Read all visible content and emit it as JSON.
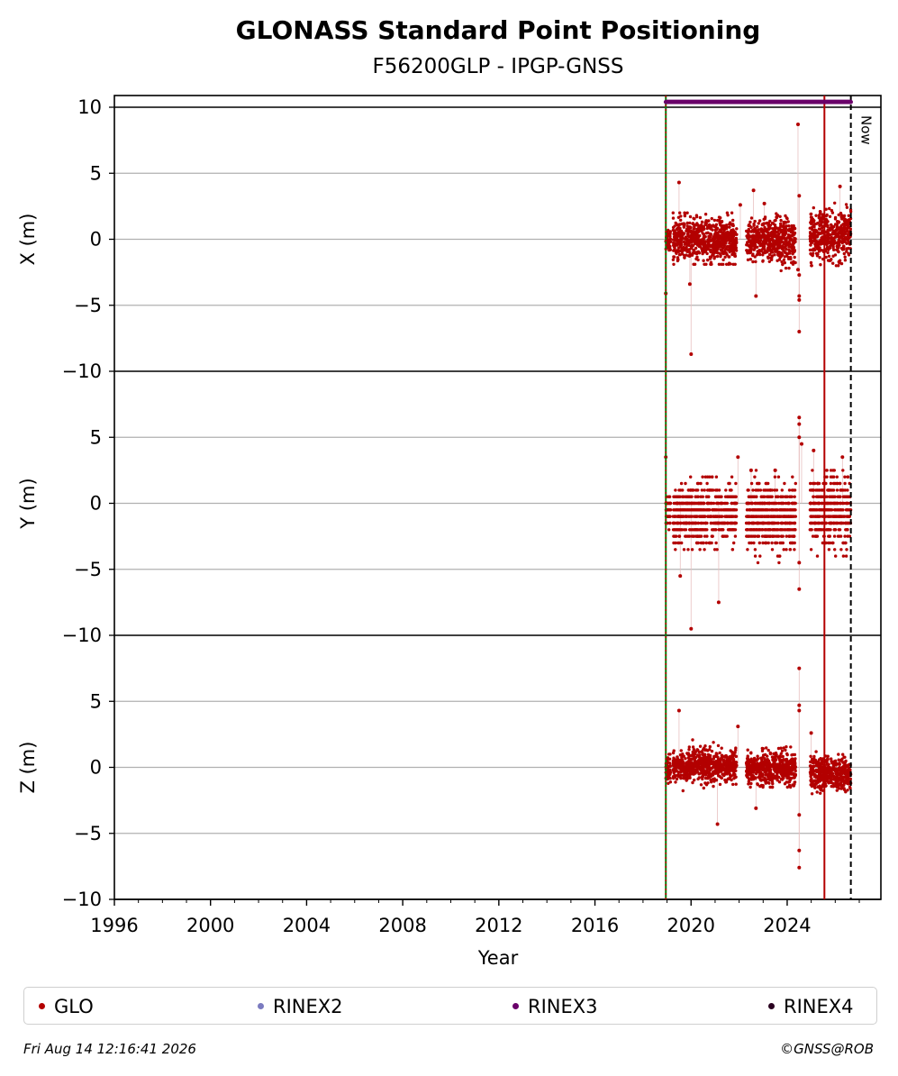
{
  "chart_data": {
    "type": "scatter",
    "title": "GLONASS Standard Point Positioning",
    "subtitle": "F56200GLP - IPGP-GNSS",
    "xlabel": "Year",
    "xlim": [
      1996,
      2027.9
    ],
    "xticks": [
      1996,
      2000,
      2004,
      2008,
      2012,
      2016,
      2020,
      2024
    ],
    "grid": true,
    "legend_position": "bottom",
    "panels": [
      {
        "ylabel": "X (m)",
        "ylim": [
          -10,
          10
        ],
        "yticks": [
          10,
          5,
          0,
          -5,
          -10
        ],
        "tick_labels": [
          "10",
          "5",
          "0",
          "−5",
          "−10"
        ]
      },
      {
        "ylabel": "Y (m)",
        "ylim": [
          -10,
          10
        ],
        "yticks": [
          5,
          0,
          -5,
          -10
        ],
        "tick_labels": [
          "5",
          "0",
          "−5",
          "−10"
        ]
      },
      {
        "ylabel": "Z (m)",
        "ylim": [
          -10,
          10
        ],
        "yticks": [
          5,
          0,
          -5,
          -10
        ],
        "tick_labels": [
          "5",
          "0",
          "−5",
          "−10"
        ]
      }
    ],
    "series": [
      {
        "name": "GLO",
        "color": "#b30000",
        "segments": [
          {
            "x_range": [
              2018.95,
              2019.15
            ],
            "X": {
              "mean": 0.0,
              "sd": 0.45,
              "min": -1.3,
              "max": 1.0
            },
            "Y": {
              "mean": -0.8,
              "sd": 0.8,
              "min": -2.0,
              "max": 0.5
            },
            "Z": {
              "mean": -0.2,
              "sd": 0.5,
              "min": -1.5,
              "max": 1.0
            }
          },
          {
            "x_range": [
              2019.25,
              2021.9
            ],
            "X": {
              "mean": -0.1,
              "sd": 0.8,
              "min": -1.9,
              "max": 2.0
            },
            "Y": {
              "mean": -0.8,
              "sd": 1.1,
              "min": -3.5,
              "max": 2.0
            },
            "Z": {
              "mean": 0.1,
              "sd": 0.6,
              "min": -1.9,
              "max": 2.3
            }
          },
          {
            "x_range": [
              2022.3,
              2024.35
            ],
            "X": {
              "mean": -0.1,
              "sd": 0.8,
              "min": -2.5,
              "max": 2.2
            },
            "Y": {
              "mean": -1.0,
              "sd": 1.2,
              "min": -5.0,
              "max": 2.5
            },
            "Z": {
              "mean": -0.1,
              "sd": 0.6,
              "min": -1.5,
              "max": 1.8
            }
          },
          {
            "x_range": [
              2024.95,
              2026.65
            ],
            "X": {
              "mean": 0.3,
              "sd": 0.9,
              "min": -2.0,
              "max": 3.0
            },
            "Y": {
              "mean": -0.6,
              "sd": 1.3,
              "min": -4.0,
              "max": 3.5
            },
            "Z": {
              "mean": -0.5,
              "sd": 0.6,
              "min": -2.0,
              "max": 1.9
            }
          }
        ],
        "outliers": {
          "X": [
            [
              2018.95,
              -4.1
            ],
            [
              2019.5,
              4.3
            ],
            [
              2019.95,
              -3.4
            ],
            [
              2020.0,
              -8.7
            ],
            [
              2022.05,
              2.6
            ],
            [
              2022.6,
              3.7
            ],
            [
              2022.7,
              -4.3
            ],
            [
              2023.05,
              2.7
            ],
            [
              2024.45,
              8.7
            ],
            [
              2024.5,
              -7.0
            ],
            [
              2024.5,
              -4.6
            ],
            [
              2024.5,
              -4.3
            ],
            [
              2024.5,
              3.3
            ],
            [
              2024.5,
              -2.7
            ],
            [
              2024.45,
              -2.3
            ],
            [
              2026.2,
              4.0
            ]
          ],
          "Y": [
            [
              2018.95,
              3.5
            ],
            [
              2019.55,
              -5.5
            ],
            [
              2020.0,
              -9.5
            ],
            [
              2021.15,
              -7.5
            ],
            [
              2021.95,
              3.5
            ],
            [
              2022.5,
              2.5
            ],
            [
              2023.5,
              2.5
            ],
            [
              2024.5,
              6.5
            ],
            [
              2024.5,
              6.0
            ],
            [
              2024.5,
              5.0
            ],
            [
              2024.5,
              -6.5
            ],
            [
              2024.5,
              -4.5
            ],
            [
              2024.6,
              4.5
            ],
            [
              2025.1,
              4.0
            ],
            [
              2026.3,
              3.5
            ]
          ],
          "Z": [
            [
              2019.5,
              4.3
            ],
            [
              2021.1,
              -4.3
            ],
            [
              2021.95,
              3.1
            ],
            [
              2022.7,
              -3.1
            ],
            [
              2024.5,
              7.5
            ],
            [
              2024.5,
              4.7
            ],
            [
              2024.5,
              4.3
            ],
            [
              2024.5,
              -6.3
            ],
            [
              2024.5,
              -7.6
            ],
            [
              2024.5,
              -3.6
            ],
            [
              2025.0,
              2.6
            ]
          ]
        }
      },
      {
        "name": "RINEX2",
        "color": "#7b7bc0",
        "x": []
      },
      {
        "name": "RINEX3",
        "color": "#6a006a",
        "x_range": [
          2018.95,
          2026.65
        ],
        "y_panel": "X",
        "y_value": 10.4
      },
      {
        "name": "RINEX4",
        "color": "#2a0020",
        "x": []
      }
    ],
    "vertical_lines": [
      {
        "x": 2018.95,
        "color": "#0a7a0a",
        "style": "solid"
      },
      {
        "x": 2018.95,
        "color": "#b30000",
        "style": "dotted"
      },
      {
        "x": 2025.55,
        "color": "#b30000",
        "style": "solid"
      },
      {
        "x": 2026.65,
        "color": "#000000",
        "style": "dashed",
        "label": "Now"
      }
    ]
  },
  "legend": {
    "items": [
      "GLO",
      "RINEX2",
      "RINEX3",
      "RINEX4"
    ]
  },
  "footer": {
    "timestamp": "Fri Aug 14 12:16:41 2026",
    "credit": "©GNSS@ROB"
  }
}
